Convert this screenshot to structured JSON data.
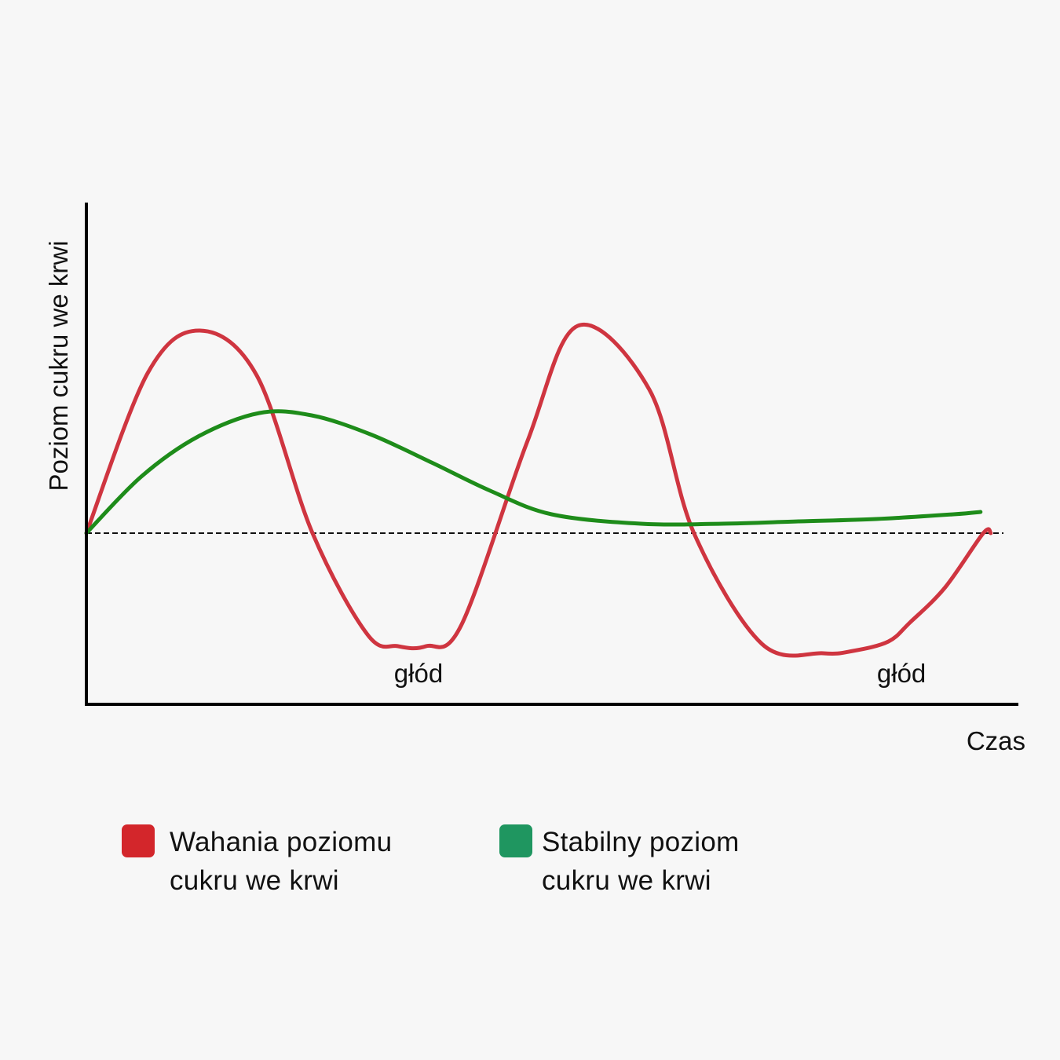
{
  "chart_data": {
    "type": "line",
    "xlabel": "Czas",
    "ylabel": "Poziom cukru we krwi",
    "xlim": [
      0,
      100
    ],
    "ylim": [
      -50,
      100
    ],
    "baseline": 0,
    "annotations": [
      {
        "text": "głód",
        "x": 35.7
      },
      {
        "text": "głód",
        "x": 87.6
      }
    ],
    "series": [
      {
        "name": "Wahania poziomu cukru we krwi",
        "color": "#cf3540",
        "x": [
          0,
          6.6,
          12.2,
          18.3,
          24.3,
          30.2,
          33.5,
          36.5,
          40.3,
          47.4,
          52.8,
          60.5,
          65.3,
          72.6,
          79.2,
          82.4,
          86.2,
          88.5,
          92.3,
          96.4,
          97.2
        ],
        "y": [
          0,
          68,
          86,
          67,
          0,
          -43,
          -48,
          -48,
          -39,
          39,
          88,
          61,
          0,
          -47,
          -51,
          -50,
          -46,
          -38,
          -23,
          0,
          0
        ]
      },
      {
        "name": "Stabilny poziom cukru we krwi",
        "color": "#1e8c1a",
        "x": [
          0,
          5.9,
          12.0,
          18.6,
          24.2,
          30.5,
          37.1,
          43.4,
          50.0,
          59.6,
          68.3,
          76.6,
          84.9,
          93.2,
          96.1
        ],
        "y": [
          0,
          24,
          41,
          51,
          50,
          42,
          30,
          18,
          8,
          4,
          4,
          5,
          6,
          8,
          9
        ]
      }
    ]
  },
  "legend": {
    "items": [
      {
        "lines": [
          "Wahania poziomu",
          "cukru we krwi"
        ],
        "color": "#d3262b"
      },
      {
        "lines": [
          "Stabilny poziom",
          "cukru we krwi"
        ],
        "color": "#1f9660"
      }
    ]
  }
}
